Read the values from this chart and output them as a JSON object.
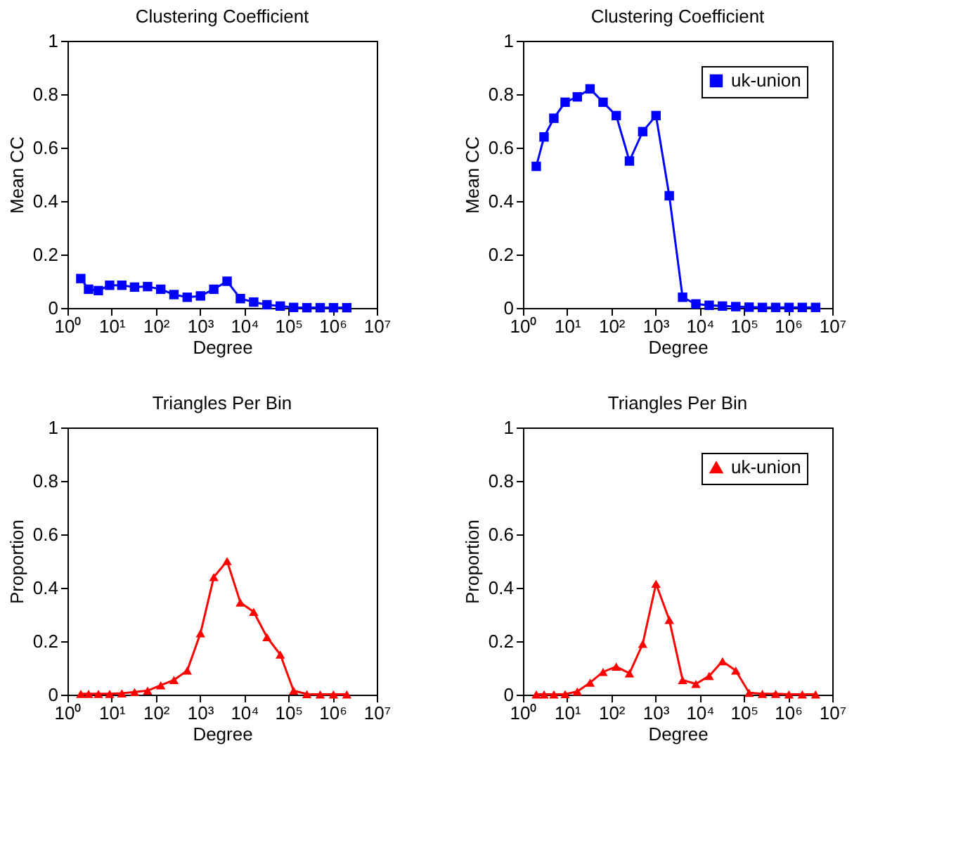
{
  "chart_data": [
    {
      "type": "line",
      "title": "Clustering Coefficient",
      "xlabel": "Degree",
      "ylabel": "Mean CC",
      "log": "x",
      "marker": "square",
      "line_style": "solid",
      "grid": false,
      "legend": false,
      "x": [
        2,
        3,
        5,
        9,
        17,
        33,
        65,
        129,
        257,
        513,
        1025,
        2049,
        4097,
        8193,
        16385,
        32769,
        65537,
        131073,
        262145,
        524289,
        1048577,
        2097153
      ],
      "series": [
        {
          "color": "#0000ff",
          "values": [
            0.11,
            0.07,
            0.065,
            0.085,
            0.085,
            0.078,
            0.08,
            0.07,
            0.05,
            0.04,
            0.045,
            0.07,
            0.1,
            0.035,
            0.022,
            0.012,
            0.007,
            0.002,
            0.001,
            0.001,
            0.001,
            0.001
          ]
        }
      ],
      "xlim": [
        1,
        10000000
      ],
      "xticks": [
        {
          "value": 1,
          "label": "10⁰"
        },
        {
          "value": 10,
          "label": "10¹"
        },
        {
          "value": 100,
          "label": "10²"
        },
        {
          "value": 1000,
          "label": "10³"
        },
        {
          "value": 10000,
          "label": "10⁴"
        },
        {
          "value": 100000,
          "label": "10⁵"
        },
        {
          "value": 1000000,
          "label": "10⁶"
        },
        {
          "value": 10000000,
          "label": "10⁷"
        }
      ],
      "ylim": [
        0,
        1
      ],
      "yticks": [
        0,
        0.2,
        0.4,
        0.6,
        0.8,
        1
      ]
    },
    {
      "type": "line",
      "title": "Clustering Coefficient",
      "xlabel": "Degree",
      "ylabel": "Mean CC",
      "log": "x",
      "marker": "square",
      "line_style": "solid",
      "grid": false,
      "legend": "top right",
      "x": [
        2,
        3,
        5,
        9,
        17,
        33,
        65,
        129,
        257,
        513,
        1025,
        2049,
        4097,
        8193,
        16385,
        32769,
        65537,
        131073,
        262145,
        524289,
        1048577,
        2097153,
        4194305
      ],
      "series": [
        {
          "name": "uk-union",
          "color": "#0000ff",
          "values": [
            0.53,
            0.64,
            0.71,
            0.77,
            0.79,
            0.82,
            0.77,
            0.72,
            0.55,
            0.66,
            0.72,
            0.42,
            0.04,
            0.015,
            0.01,
            0.007,
            0.005,
            0.003,
            0.002,
            0.002,
            0.002,
            0.002,
            0.002
          ]
        }
      ],
      "xlim": [
        1,
        10000000
      ],
      "xticks": [
        {
          "value": 1,
          "label": "10⁰"
        },
        {
          "value": 10,
          "label": "10¹"
        },
        {
          "value": 100,
          "label": "10²"
        },
        {
          "value": 1000,
          "label": "10³"
        },
        {
          "value": 10000,
          "label": "10⁴"
        },
        {
          "value": 100000,
          "label": "10⁵"
        },
        {
          "value": 1000000,
          "label": "10⁶"
        },
        {
          "value": 10000000,
          "label": "10⁷"
        }
      ],
      "ylim": [
        0,
        1
      ],
      "yticks": [
        0,
        0.2,
        0.4,
        0.6,
        0.8,
        1
      ]
    },
    {
      "type": "line",
      "title": "Triangles Per Bin",
      "xlabel": "Degree",
      "ylabel": "Proportion",
      "log": "x",
      "marker": "triangle",
      "line_style": "solid",
      "grid": false,
      "legend": false,
      "x": [
        2,
        3,
        5,
        9,
        17,
        33,
        65,
        129,
        257,
        513,
        1025,
        2049,
        4097,
        8193,
        16385,
        32769,
        65537,
        131073,
        262145,
        524289,
        1048577,
        2097153
      ],
      "series": [
        {
          "color": "#ff0000",
          "values": [
            0.003,
            0.003,
            0.003,
            0.003,
            0.005,
            0.01,
            0.015,
            0.035,
            0.055,
            0.09,
            0.23,
            0.44,
            0.5,
            0.345,
            0.31,
            0.215,
            0.15,
            0.015,
            0.002,
            0.001,
            0.001,
            0.001
          ]
        }
      ],
      "xlim": [
        1,
        10000000
      ],
      "xticks": [
        {
          "value": 1,
          "label": "10⁰"
        },
        {
          "value": 10,
          "label": "10¹"
        },
        {
          "value": 100,
          "label": "10²"
        },
        {
          "value": 1000,
          "label": "10³"
        },
        {
          "value": 10000,
          "label": "10⁴"
        },
        {
          "value": 100000,
          "label": "10⁵"
        },
        {
          "value": 1000000,
          "label": "10⁶"
        },
        {
          "value": 10000000,
          "label": "10⁷"
        }
      ],
      "ylim": [
        0,
        1
      ],
      "yticks": [
        0,
        0.2,
        0.4,
        0.6,
        0.8,
        1
      ]
    },
    {
      "type": "line",
      "title": "Triangles Per Bin",
      "xlabel": "Degree",
      "ylabel": "Proportion",
      "log": "x",
      "marker": "triangle",
      "line_style": "solid",
      "grid": false,
      "legend": "top right",
      "x": [
        2,
        3,
        5,
        9,
        17,
        33,
        65,
        129,
        257,
        513,
        1025,
        2049,
        4097,
        8193,
        16385,
        32769,
        65537,
        131073,
        262145,
        524289,
        1048577,
        2097153,
        4194305
      ],
      "series": [
        {
          "name": "uk-union",
          "color": "#ff0000",
          "values": [
            0.001,
            0.001,
            0.001,
            0.002,
            0.012,
            0.045,
            0.085,
            0.105,
            0.08,
            0.19,
            0.415,
            0.28,
            0.055,
            0.04,
            0.07,
            0.125,
            0.09,
            0.007,
            0.003,
            0.003,
            0.001,
            0.001,
            0.001
          ]
        }
      ],
      "xlim": [
        1,
        10000000
      ],
      "xticks": [
        {
          "value": 1,
          "label": "10⁰"
        },
        {
          "value": 10,
          "label": "10¹"
        },
        {
          "value": 100,
          "label": "10²"
        },
        {
          "value": 1000,
          "label": "10³"
        },
        {
          "value": 10000,
          "label": "10⁴"
        },
        {
          "value": 100000,
          "label": "10⁵"
        },
        {
          "value": 1000000,
          "label": "10⁶"
        },
        {
          "value": 10000000,
          "label": "10⁷"
        }
      ],
      "ylim": [
        0,
        1
      ],
      "yticks": [
        0,
        0.2,
        0.4,
        0.6,
        0.8,
        1
      ]
    }
  ]
}
